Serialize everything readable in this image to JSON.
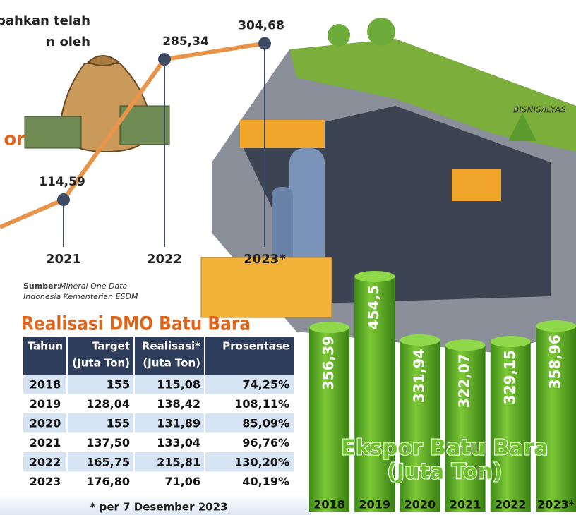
{
  "chart_data": [
    {
      "type": "line",
      "annotations": [
        "bahkan telah",
        "n oleh",
        "or"
      ],
      "categories": [
        "2021",
        "2022",
        "2023*"
      ],
      "values": [
        114.59,
        285.34,
        304.68
      ],
      "value_labels": [
        "114,59",
        "285,34",
        "304,68"
      ],
      "color": "#e8944a",
      "marker_color": "#3d4a63"
    },
    {
      "type": "bar",
      "title": "Ekspor Batu Bara",
      "subtitle": "(Juta Ton)",
      "categories": [
        "2018",
        "2019",
        "2020",
        "2021",
        "2022",
        "2023*"
      ],
      "values": [
        356.39,
        454.5,
        331.94,
        322.07,
        329.15,
        358.96
      ],
      "value_labels": [
        "356,39",
        "454,5",
        "331,94",
        "322,07",
        "329,15",
        "358,96"
      ],
      "color": "#5aad24"
    }
  ],
  "source": {
    "label": "Sumber:",
    "text": "Mineral One Data",
    "text2": "Indonesia Kementerian ESDM"
  },
  "credit": "BISNIS/ILYAS",
  "table": {
    "title": "Realisasi DMO Batu Bara",
    "header": [
      [
        "Tahun",
        ""
      ],
      [
        "Target",
        "(Juta Ton)"
      ],
      [
        "Realisasi*",
        "(Juta Ton)"
      ],
      [
        "Prosentase",
        ""
      ]
    ],
    "rows": [
      [
        "2018",
        "155",
        "115,08",
        "74,25%"
      ],
      [
        "2019",
        "128,04",
        "138,42",
        "108,11%"
      ],
      [
        "2020",
        "155",
        "131,89",
        "85,09%"
      ],
      [
        "2021",
        "137,50",
        "133,04",
        "96,76%"
      ],
      [
        "2022",
        "165,75",
        "215,81",
        "130,20%"
      ],
      [
        "2023",
        "176,80",
        "71,06",
        "40,19%"
      ]
    ]
  },
  "footnote": "* per 7 Desember 2023"
}
